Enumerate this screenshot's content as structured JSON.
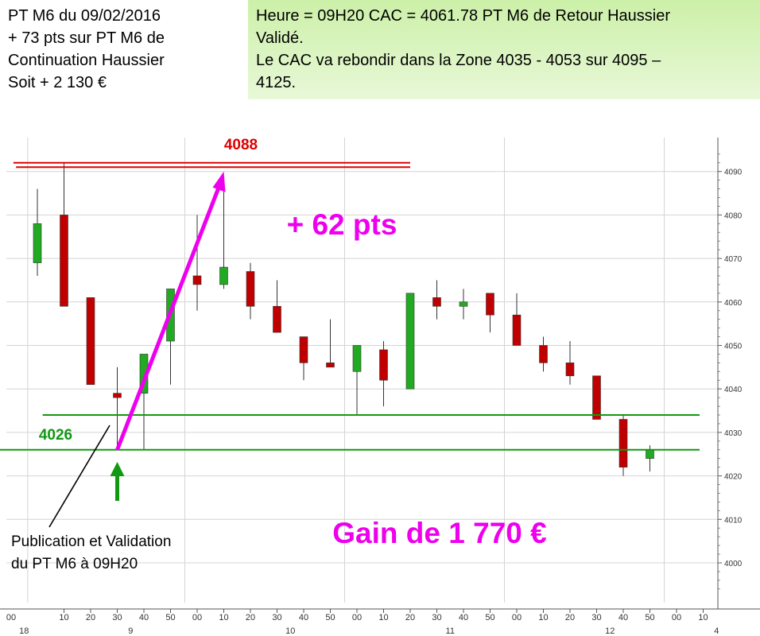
{
  "header_left": {
    "line1": "PT M6 du  09/02/2016",
    "line2": "+ 73 pts sur PT M6 de",
    "line3": "Continuation  Haussier",
    "line4": "Soit +  2 130 €"
  },
  "header_right": {
    "line1": "Heure = 09H20 CAC = 4061.78 PT M6 de Retour Haussier",
    "line2": "Validé.",
    "line3": "Le CAC va rebondir dans la Zone 4035 - 4053 sur 4095 –",
    "line4": "4125."
  },
  "annotations": {
    "level_high": "4088",
    "level_low": "4026",
    "pts": "+ 62 pts",
    "gain": "Gain de 1 770 €",
    "publication_line1": "Publication et Validation",
    "publication_line2": "du PT M6 à 09H20"
  },
  "colors": {
    "bull": "#22aa22",
    "bear": "#c00000",
    "red_line": "#dd0000",
    "green_line": "#119911",
    "magenta": "#ee00ee",
    "grid": "#d4d4d4"
  },
  "chart_data": {
    "type": "candlestick",
    "y_ticks": [
      4000,
      4010,
      4020,
      4030,
      4040,
      4050,
      4060,
      4070,
      4080,
      4090
    ],
    "ylim": [
      3992,
      4096
    ],
    "x_tick_labels": [
      "10",
      "20",
      "30",
      "40",
      "50",
      "00",
      "10",
      "20",
      "30",
      "40",
      "50",
      "00",
      "10",
      "20",
      "30",
      "40",
      "50",
      "00",
      "10",
      "20",
      "30",
      "40",
      "50",
      "00",
      "10"
    ],
    "day_labels": [
      {
        "label": "18",
        "at": -1.5
      },
      {
        "label": "9",
        "at": 2.5
      },
      {
        "label": "10",
        "at": 8.5
      },
      {
        "label": "11",
        "at": 14.5
      },
      {
        "label": "12",
        "at": 20.5
      },
      {
        "label": "4",
        "at": 24.5
      }
    ],
    "candles": [
      {
        "o": 4069,
        "h": 4086,
        "l": 4066,
        "c": 4078
      },
      {
        "o": 4080,
        "h": 4092,
        "l": 4059,
        "c": 4059
      },
      {
        "o": 4061,
        "h": 4061,
        "l": 4041,
        "c": 4041
      },
      {
        "o": 4039,
        "h": 4045,
        "l": 4026,
        "c": 4038
      },
      {
        "o": 4039,
        "h": 4048,
        "l": 4026,
        "c": 4048
      },
      {
        "o": 4051,
        "h": 4063,
        "l": 4041,
        "c": 4063
      },
      {
        "o": 4066,
        "h": 4080,
        "l": 4058,
        "c": 4064
      },
      {
        "o": 4064,
        "h": 4088,
        "l": 4063,
        "c": 4068
      },
      {
        "o": 4067,
        "h": 4069,
        "l": 4056,
        "c": 4059
      },
      {
        "o": 4059,
        "h": 4065,
        "l": 4053,
        "c": 4053
      },
      {
        "o": 4052,
        "h": 4052,
        "l": 4042,
        "c": 4046
      },
      {
        "o": 4046,
        "h": 4056,
        "l": 4045,
        "c": 4045
      },
      {
        "o": 4044,
        "h": 4050,
        "l": 4034,
        "c": 4050
      },
      {
        "o": 4049,
        "h": 4051,
        "l": 4036,
        "c": 4042
      },
      {
        "o": 4040,
        "h": 4062,
        "l": 4040,
        "c": 4062
      },
      {
        "o": 4061,
        "h": 4065,
        "l": 4056,
        "c": 4059
      },
      {
        "o": 4059,
        "h": 4063,
        "l": 4056,
        "c": 4060
      },
      {
        "o": 4062,
        "h": 4062,
        "l": 4053,
        "c": 4057
      },
      {
        "o": 4057,
        "h": 4062,
        "l": 4050,
        "c": 4050
      },
      {
        "o": 4050,
        "h": 4052,
        "l": 4044,
        "c": 4046
      },
      {
        "o": 4046,
        "h": 4051,
        "l": 4041,
        "c": 4043
      },
      {
        "o": 4043,
        "h": 4043,
        "l": 4033,
        "c": 4033
      },
      {
        "o": 4033,
        "h": 4034,
        "l": 4020,
        "c": 4022
      },
      {
        "o": 4024,
        "h": 4027,
        "l": 4021,
        "c": 4026
      }
    ],
    "levels": [
      {
        "value": 4092,
        "color": "red",
        "x_from": -0.9,
        "x_to": 14
      },
      {
        "value": 4091,
        "color": "red",
        "x_from": -0.8,
        "x_to": 14
      },
      {
        "value": 4034,
        "color": "green",
        "x_from": 0.2,
        "x_to": 25.8
      },
      {
        "value": 4026,
        "color": "green",
        "x_from": -1.5,
        "x_to": 26
      }
    ],
    "arrow": {
      "from": [
        3,
        4026
      ],
      "to": [
        7.0,
        4090
      ]
    }
  }
}
